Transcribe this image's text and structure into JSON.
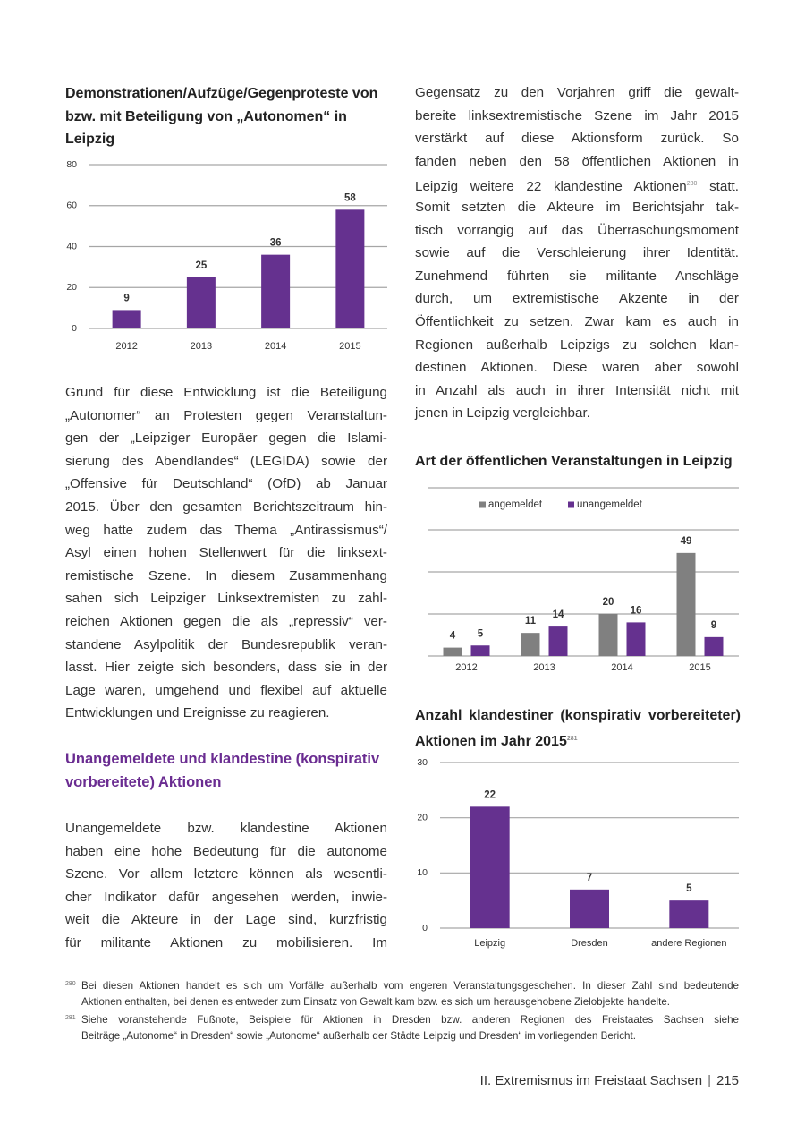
{
  "left_column": {
    "paragraph_1": {
      "lines": [
        "Grund für diese Entwicklung ist die Beteiligung",
        "„Autonomer“ an Protesten gegen Veranstaltun-",
        "gen der „Leipziger Europäer gegen die Islami-",
        "sierung des Abendlandes“ (LEGIDA) sowie der",
        "„Offensive für Deutschland“ (OfD) ab Januar",
        "2015. Über den gesamten Berichtszeitraum hin-",
        "weg hatte zudem das Thema „Antirassismus“/",
        "Asyl einen hohen Stellenwert für die linksext-",
        "remistische Szene. In diesem Zusammenhang",
        "sahen sich Leipziger Linksextremisten zu zahl-",
        "reichen Aktionen gegen die als „repressiv“ ver-",
        "standene Asylpolitik der Bundesrepublik veran-",
        "lasst. Hier zeigte sich besonders, dass sie in der",
        "Lage waren, umgehend und flexibel auf aktuelle",
        "Entwicklungen und Ereignisse zu reagieren."
      ]
    },
    "heading": "Unangemeldete und klandestine (konspirativ vorbereitete) Aktionen",
    "paragraph_2": {
      "lines": [
        "Unangemeldete bzw. klandestine Aktionen",
        "haben eine hohe Bedeutung für die autonome",
        "Szene. Vor allem letztere können als wesentli-",
        "cher Indikator dafür angesehen werden, inwie-",
        "weit die Akteure in der Lage sind, kurzfristig",
        "für militante Aktionen zu mobilisieren. Im"
      ]
    }
  },
  "right_column": {
    "paragraph": {
      "lines": [
        "Gegensatz zu den Vorjahren griff die gewalt-",
        "bereite linksextremistische Szene im Jahr 2015",
        "verstärkt auf diese Aktionsform zurück. So",
        "fanden neben den 58 öffentlichen Aktionen in",
        {
          "text": "Leipzig weitere 22 klandestine Aktionen",
          "ref": 280,
          "tail": "statt."
        },
        "Somit setzten die Akteure im Berichtsjahr tak-",
        "tisch vorrangig auf das Überraschungsmoment",
        "sowie auf die Verschleierung ihrer Identität.",
        "Zunehmend führten sie militante Anschläge",
        "durch, um extremistische Akzente in der",
        "Öffentlichkeit zu setzen. Zwar kam es auch in",
        "Regionen außerhalb Leipzigs zu solchen klan-",
        "destinen Aktionen. Diese waren aber sowohl",
        "in Anzahl als auch in ihrer Intensität nicht mit",
        "jenen in Leipzig vergleichbar."
      ]
    }
  },
  "chart_data": [
    {
      "type": "bar",
      "title": "Demonstrationen/Aufzüge/Gegenproteste von bzw. mit Beteiligung von „Autonomen“ in Leipzig",
      "categories": [
        "2012",
        "2013",
        "2014",
        "2015"
      ],
      "values": [
        9,
        25,
        36,
        58
      ],
      "color": "#65318f",
      "ylim": [
        0,
        80
      ],
      "yticks": [
        0,
        20,
        40,
        60,
        80
      ],
      "grid": true
    },
    {
      "type": "grouped_bar",
      "title": "Art der öffentlichen Veranstaltungen in Leipzig",
      "categories": [
        "2012",
        "2013",
        "2014",
        "2015"
      ],
      "series": [
        {
          "name": "angemeldet",
          "color": "#808080",
          "values": [
            4,
            11,
            20,
            49
          ]
        },
        {
          "name": "unangemeldet",
          "color": "#65318f",
          "values": [
            5,
            14,
            16,
            9
          ]
        }
      ],
      "ylim": [
        0,
        80
      ],
      "yticks": [
        0,
        20,
        40,
        60,
        80
      ],
      "ytick_labels": false,
      "grid": true,
      "legend": "top"
    },
    {
      "type": "bar",
      "title": "Anzahl klandestiner (konspirativ vorbereiteter) Aktionen im Jahr 2015",
      "title_ref": 281,
      "categories": [
        "Leipzig",
        "Dresden",
        "andere Regionen"
      ],
      "values": [
        22,
        7,
        5
      ],
      "color": "#65318f",
      "ylim": [
        0,
        30
      ],
      "yticks": [
        0,
        10,
        20,
        30
      ],
      "grid": true
    }
  ],
  "footnotes": [
    {
      "number": 280,
      "lines": [
        "Bei diesen Aktionen handelt es sich um Vorfälle außerhalb vom engeren Veranstaltungsgeschehen. In dieser Zahl sind bedeutende",
        "Aktionen enthalten, bei denen es entweder zum Einsatz von Gewalt kam bzw. es sich um herausgehobene Zielobjekte handelte."
      ]
    },
    {
      "number": 281,
      "lines": [
        "Siehe voranstehende Fußnote, Beispiele für Aktionen in Dresden bzw. anderen Regionen des Freistaates Sachsen siehe",
        "Beiträge „Autonome“ in Dresden“ sowie „Autonome“ außerhalb der Städte Leipzig und Dresden“ im vorliegenden Bericht."
      ]
    }
  ],
  "footer": {
    "section": "II. Extremismus im Freistaat Sachsen",
    "page": 215
  }
}
